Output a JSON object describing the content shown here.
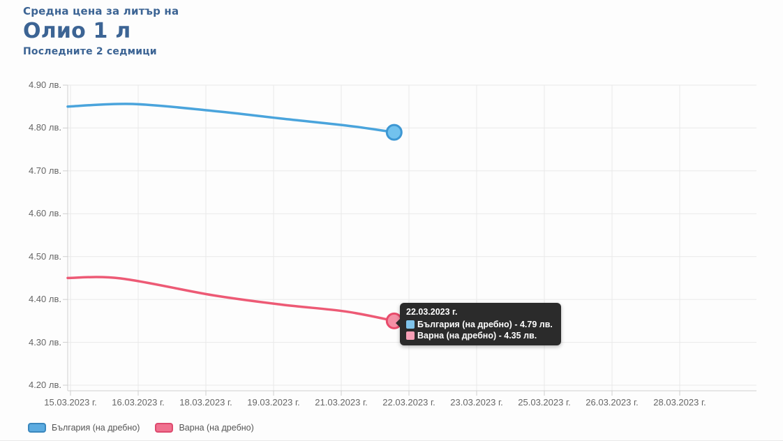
{
  "page": {
    "supertitle": "Средна цена за литър на",
    "title": "Олио 1 л",
    "subtitle": "Последните 2 седмици"
  },
  "colors": {
    "title_blue": "#3c6494",
    "grid": "#e9e9e9",
    "axis_line": "#cfcfcf",
    "axis_label": "#666666",
    "tooltip_bg": "#2b2b2b",
    "tooltip_text": "#ffffff",
    "background": "#fdfdfd"
  },
  "chart_data": {
    "type": "line",
    "title": "Средна цена за литър на Олио 1 л",
    "subtitle": "Последните 2 седмици",
    "grid": true,
    "legend_position": "bottom-left",
    "y_axis": {
      "unit": "лв.",
      "min": 4.2,
      "max": 4.9,
      "tick_step": 0.1,
      "tick_labels": [
        "4.90 лв.",
        "4.80 лв.",
        "4.70 лв.",
        "4.60 лв.",
        "4.50 лв.",
        "4.40 лв.",
        "4.30 лв.",
        "4.20 лв."
      ]
    },
    "x_axis": {
      "tick_labels": [
        "15.03.2023 г.",
        "16.03.2023 г.",
        "18.03.2023 г.",
        "19.03.2023 г.",
        "21.03.2023 г.",
        "22.03.2023 г.",
        "23.03.2023 г.",
        "25.03.2023 г.",
        "26.03.2023 г.",
        "28.03.2023 г."
      ]
    },
    "series": [
      {
        "name": "България (на дребно)",
        "line_color": "#4aa4dc",
        "marker_fill": "#72c2ee",
        "marker_stroke": "#3d97d3",
        "points": [
          {
            "x": 0.0,
            "v": 4.85
          },
          {
            "x": 0.094,
            "v": 4.856
          },
          {
            "x": 0.21,
            "v": 4.84
          },
          {
            "x": 0.31,
            "v": 4.822
          },
          {
            "x": 0.403,
            "v": 4.806
          },
          {
            "x": 0.474,
            "v": 4.79
          }
        ],
        "last_point_date": "22.03.2023 г.",
        "last_point_value": 4.79
      },
      {
        "name": "Варна (на дребно)",
        "line_color": "#ed5a75",
        "marker_fill": "#f490a6",
        "marker_stroke": "#e84b6b",
        "points": [
          {
            "x": 0.0,
            "v": 4.45
          },
          {
            "x": 0.077,
            "v": 4.449
          },
          {
            "x": 0.21,
            "v": 4.41
          },
          {
            "x": 0.31,
            "v": 4.388
          },
          {
            "x": 0.403,
            "v": 4.372
          },
          {
            "x": 0.474,
            "v": 4.35
          }
        ],
        "last_point_date": "22.03.2023 г.",
        "last_point_value": 4.35
      }
    ],
    "tooltip": {
      "date": "22.03.2023 г.",
      "separator": " - ",
      "rows": [
        {
          "name": "България (на дребно)",
          "value": "4.79 лв.",
          "swatch_color": "#7fc3ea"
        },
        {
          "name": "Варна (на дребно)",
          "value": "4.35 лв.",
          "swatch_color": "#f79fb6"
        }
      ]
    },
    "legend": [
      {
        "label": "България (на дребно)",
        "fill": "#5cabe0",
        "border": "#3a87bd"
      },
      {
        "label": "Варна (на дребно)",
        "fill": "#f0718f",
        "border": "#dd4a6e"
      }
    ]
  }
}
